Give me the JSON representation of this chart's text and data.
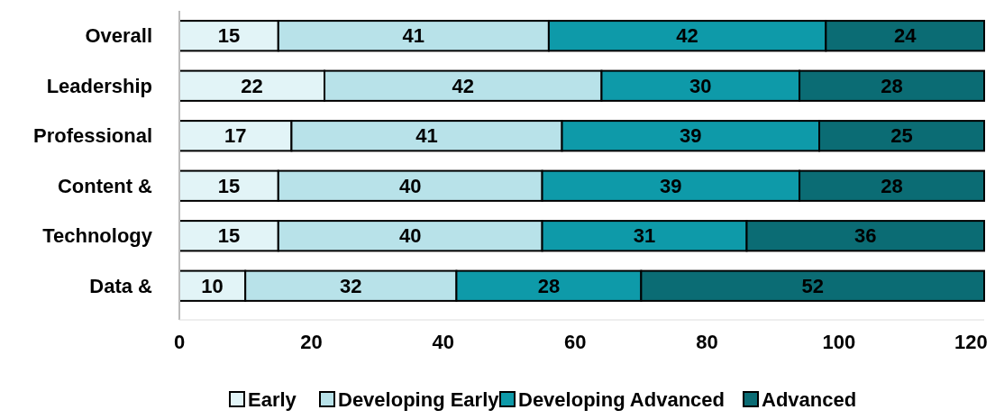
{
  "chart_data": {
    "type": "bar",
    "orientation": "horizontal",
    "stacked": true,
    "data_labels": true,
    "legend": "bottom",
    "grid": false,
    "categories": [
      "Overall",
      "Leadership",
      "Professional",
      "Content &",
      "Technology",
      "Data &"
    ],
    "xlim": [
      0,
      122
    ],
    "xticks": [
      0,
      20,
      40,
      60,
      80,
      100,
      120
    ],
    "series": [
      {
        "name": "Early",
        "color": "#e2f4f7",
        "values": [
          15,
          22,
          17,
          15,
          15,
          10
        ]
      },
      {
        "name": "Developing Early",
        "color": "#b8e2e9",
        "values": [
          41,
          42,
          41,
          40,
          40,
          32
        ]
      },
      {
        "name": "Developing Advanced",
        "color": "#0e9aa9",
        "values": [
          42,
          30,
          39,
          39,
          31,
          28
        ]
      },
      {
        "name": "Advanced",
        "color": "#0b6c74",
        "values": [
          24,
          28,
          25,
          28,
          36,
          52
        ]
      }
    ]
  }
}
